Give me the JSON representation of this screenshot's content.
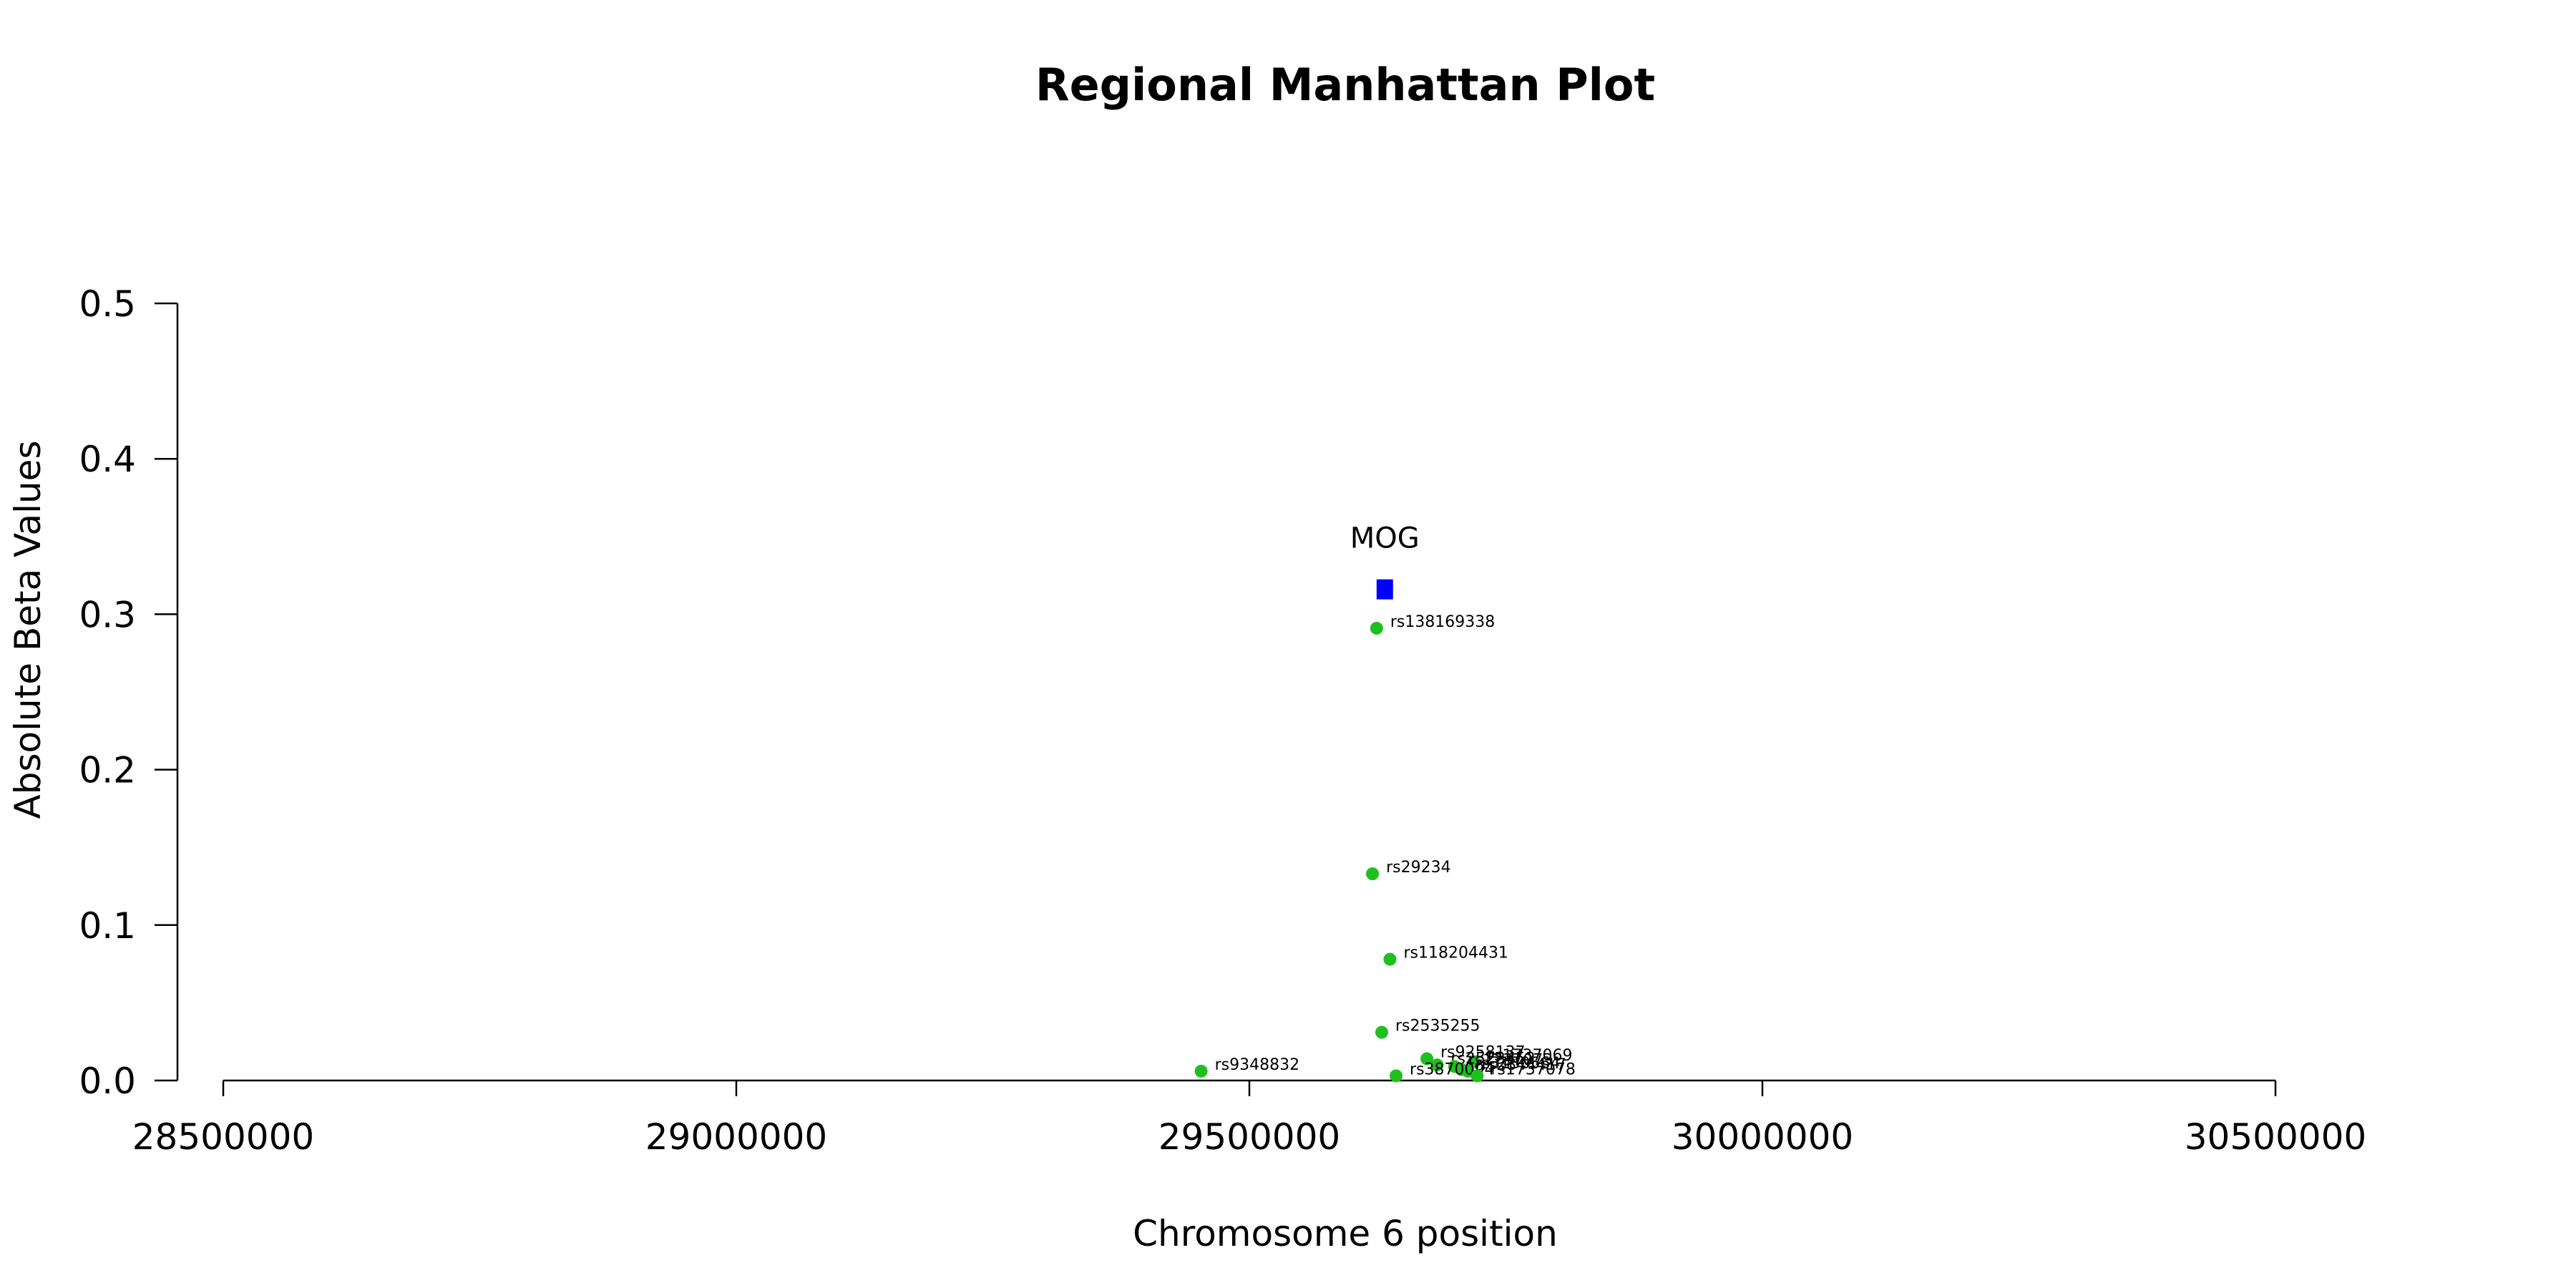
{
  "chart_data": {
    "type": "scatter",
    "title": "Regional Manhattan Plot",
    "xlabel": "Chromosome 6 position",
    "ylabel": "Absolute Beta Values",
    "xlim": [
      28500000,
      30500000
    ],
    "ylim": [
      0,
      0.5
    ],
    "x_ticks": [
      28500000,
      29000000,
      29500000,
      30000000,
      30500000
    ],
    "x_tick_labels": [
      "28500000",
      "29000000",
      "29500000",
      "30000000",
      "30500000"
    ],
    "y_ticks": [
      0,
      0.1,
      0.2,
      0.3,
      0.4,
      0.5
    ],
    "y_tick_labels": [
      "0.0",
      "0.1",
      "0.2",
      "0.3",
      "0.4",
      "0.5"
    ],
    "grid": false,
    "point_color": "#1fbf1f",
    "gene_color": "#0000ff",
    "points": [
      {
        "label": "rs138169338",
        "x": 29624000,
        "y": 0.291
      },
      {
        "label": "rs29234",
        "x": 29620000,
        "y": 0.133
      },
      {
        "label": "rs118204431",
        "x": 29637000,
        "y": 0.078
      },
      {
        "label": "rs2535255",
        "x": 29629000,
        "y": 0.031
      },
      {
        "label": "rs9348832",
        "x": 29453000,
        "y": 0.006
      },
      {
        "label": "rs9258137",
        "x": 29673000,
        "y": 0.014
      },
      {
        "label": "rs1737069",
        "x": 29719000,
        "y": 0.012
      },
      {
        "label": "rs2523452",
        "x": 29683000,
        "y": 0.01
      },
      {
        "label": "rs1737073",
        "x": 29700000,
        "y": 0.009
      },
      {
        "label": "rs3130564",
        "x": 29707000,
        "y": 0.007
      },
      {
        "label": "rs2844417",
        "x": 29713000,
        "y": 0.006
      },
      {
        "label": "rs3870094",
        "x": 29643000,
        "y": 0.003
      },
      {
        "label": "rs1737078",
        "x": 29722000,
        "y": 0.003
      }
    ],
    "genes": [
      {
        "name": "MOG",
        "start": 29624000,
        "end": 29640000,
        "y": 0.316
      }
    ]
  }
}
